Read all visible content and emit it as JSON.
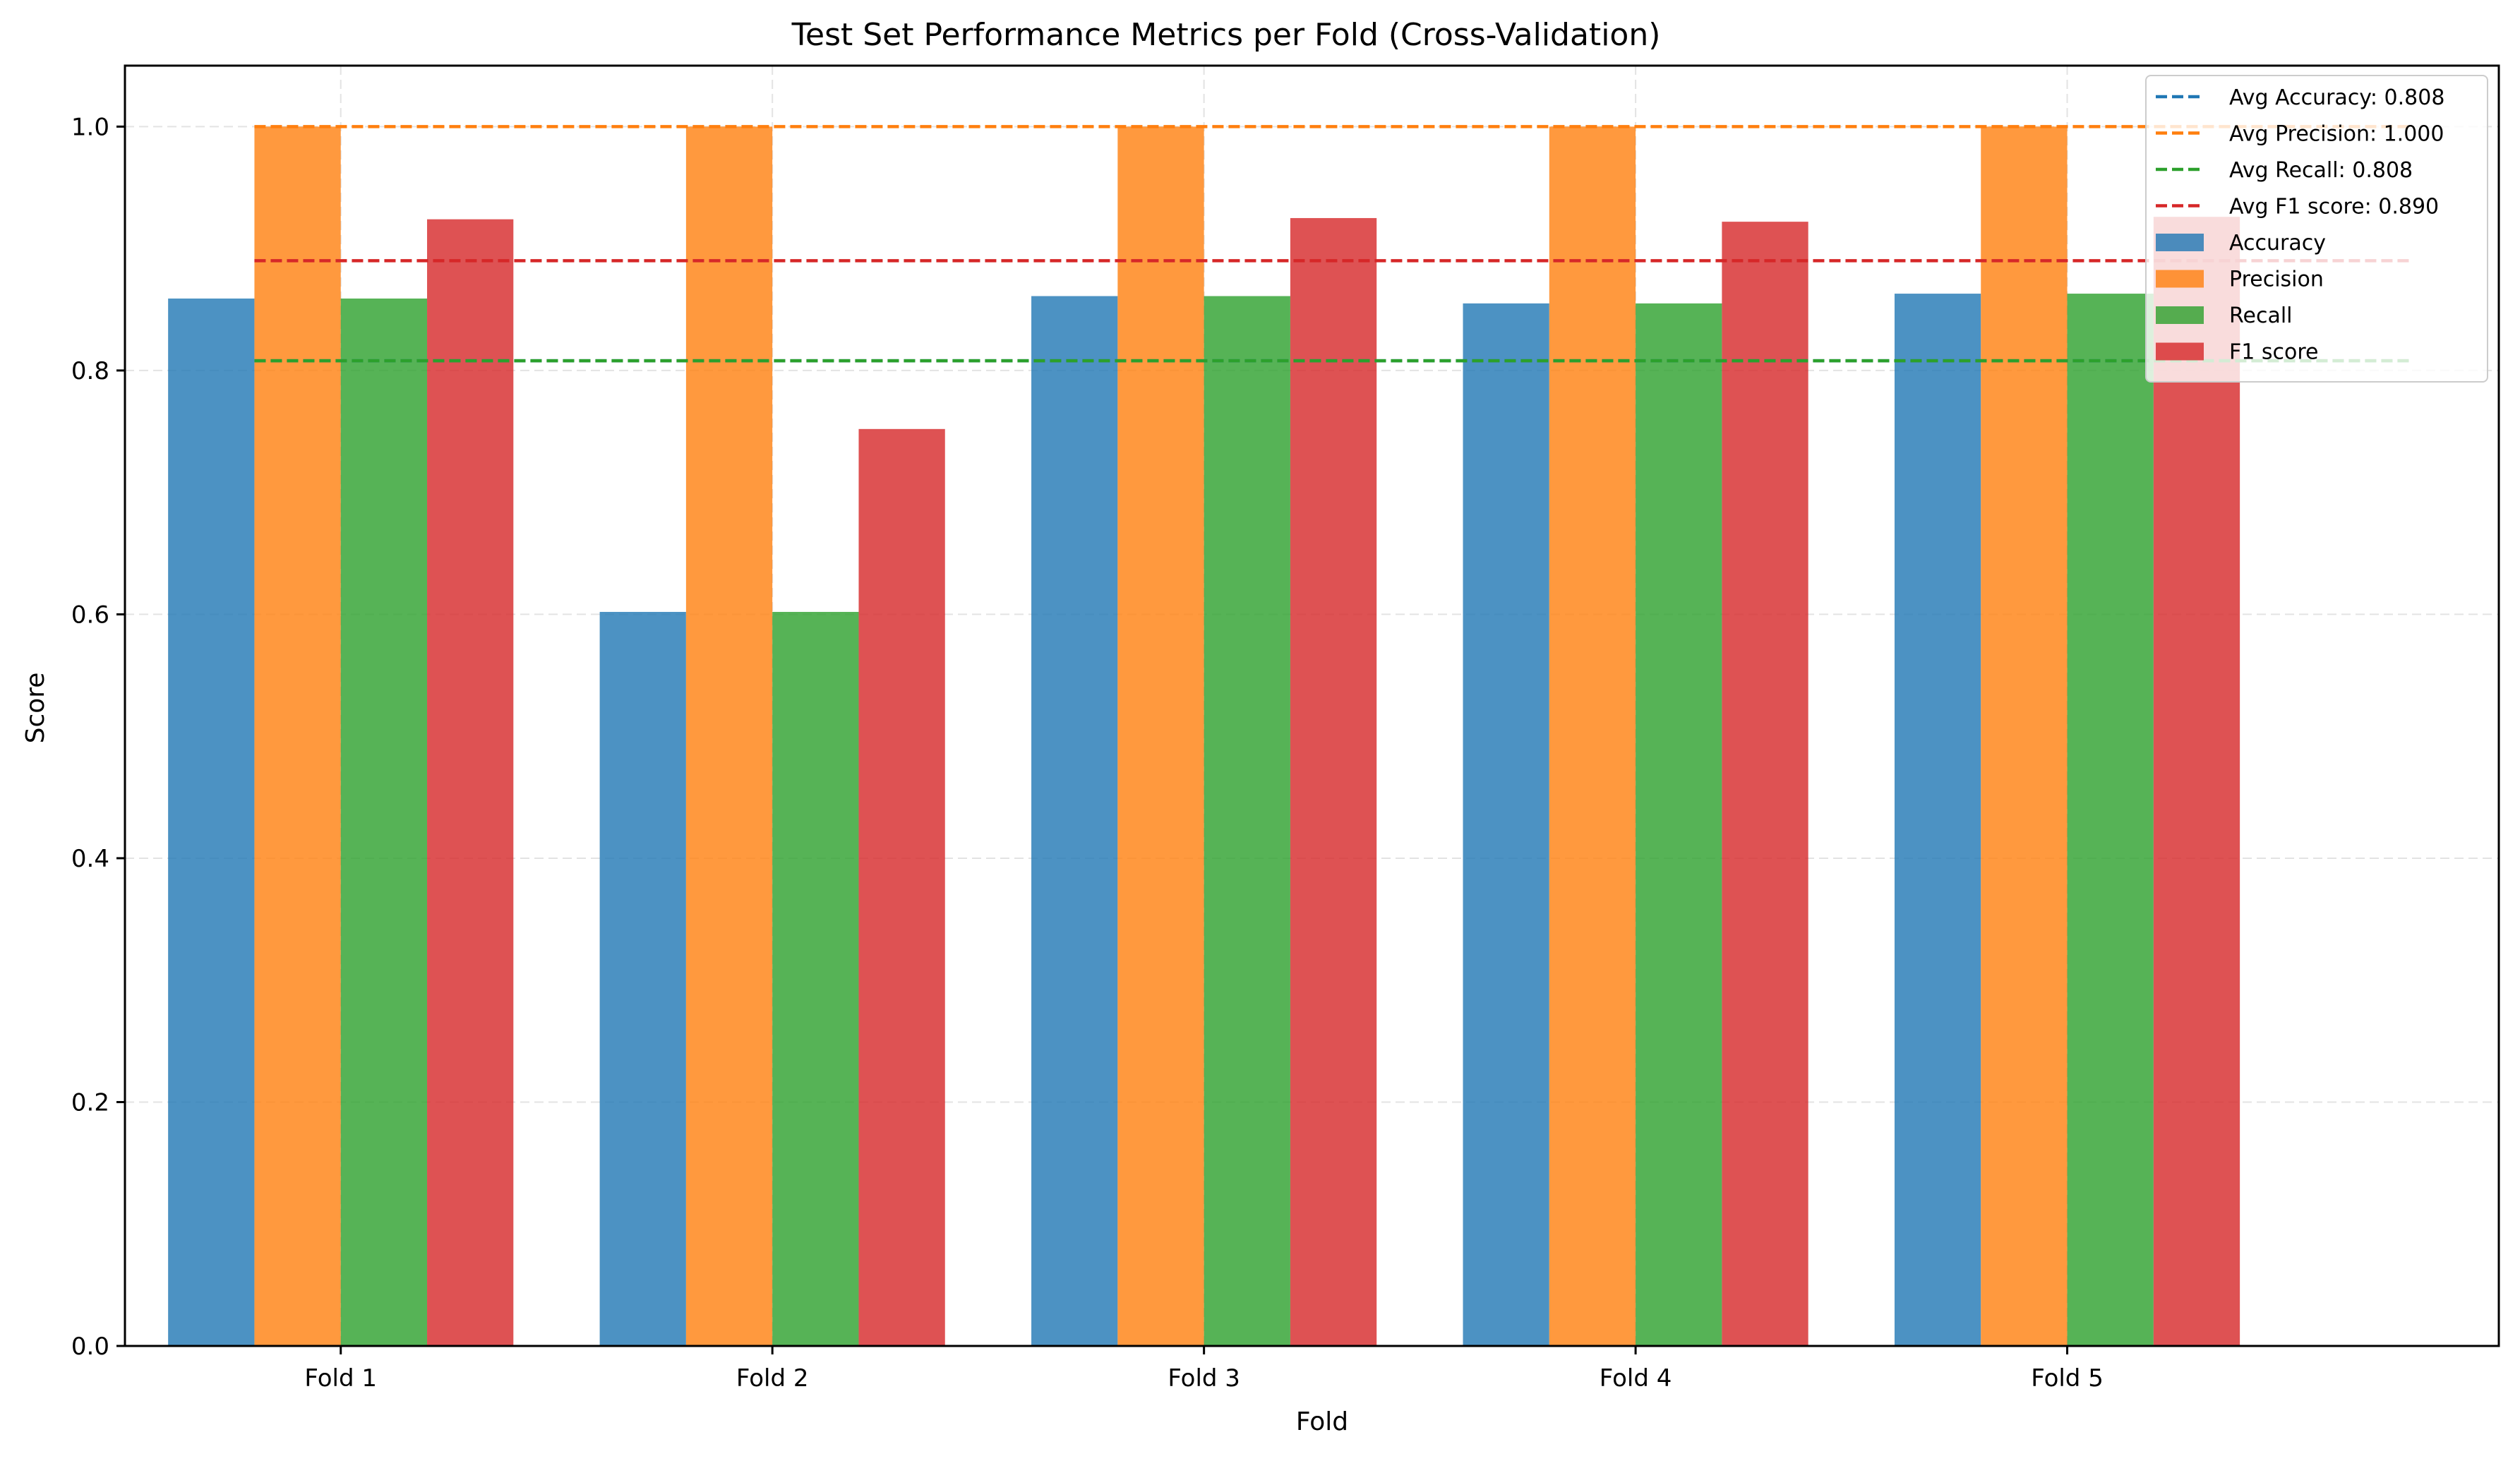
{
  "chart_data": {
    "type": "bar",
    "title": "Test Set Performance Metrics per Fold (Cross-Validation)",
    "xlabel": "Fold",
    "ylabel": "Score",
    "ylim": [
      0,
      1.05
    ],
    "yticks": [
      0.0,
      0.2,
      0.4,
      0.6,
      0.8,
      1.0
    ],
    "ytick_labels": [
      "0.0",
      "0.2",
      "0.4",
      "0.6",
      "0.8",
      "1.0"
    ],
    "grid": true,
    "legend_position": "top-right",
    "categories": [
      "Fold 1",
      "Fold 2",
      "Fold 3",
      "Fold 4",
      "Fold 5"
    ],
    "series": [
      {
        "name": "Accuracy",
        "color": "#1f77b4",
        "values": [
          0.859,
          0.602,
          0.861,
          0.855,
          0.863
        ]
      },
      {
        "name": "Precision",
        "color": "#ff7f0e",
        "values": [
          1.0,
          1.0,
          1.0,
          1.0,
          1.0
        ]
      },
      {
        "name": "Recall",
        "color": "#2ca02c",
        "values": [
          0.859,
          0.602,
          0.861,
          0.855,
          0.863
        ]
      },
      {
        "name": "F1 score",
        "color": "#d62728",
        "values": [
          0.924,
          0.752,
          0.925,
          0.922,
          0.926
        ]
      }
    ],
    "averages": [
      {
        "label": "Avg Accuracy: 0.808",
        "value": 0.808,
        "color": "#1f77b4"
      },
      {
        "label": "Avg Precision: 1.000",
        "value": 1.0,
        "color": "#ff7f0e"
      },
      {
        "label": "Avg Recall: 0.808",
        "value": 0.808,
        "color": "#2ca02c"
      },
      {
        "label": "Avg F1 score: 0.890",
        "value": 0.89,
        "color": "#d62728"
      }
    ]
  }
}
